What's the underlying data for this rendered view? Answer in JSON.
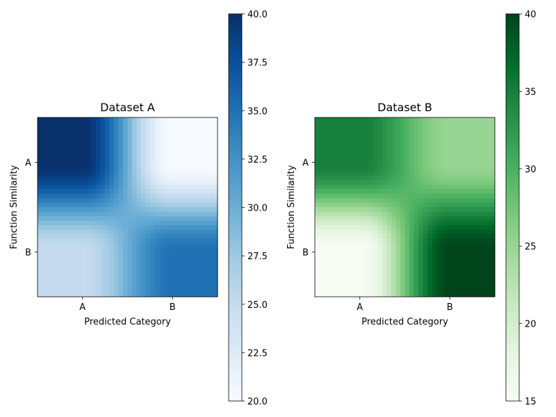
{
  "chart_data": [
    {
      "type": "heatmap",
      "title": "Dataset A",
      "xlabel": "Predicted Category",
      "ylabel": "Function Similarity",
      "x_categories": [
        "A",
        "B"
      ],
      "y_categories": [
        "A",
        "B"
      ],
      "values": [
        [
          40,
          20
        ],
        [
          25,
          35
        ]
      ],
      "colormap": "Blues",
      "interpolation": "bicubic",
      "colorbar": {
        "range": [
          20,
          40
        ],
        "ticks": [
          "20.0",
          "22.5",
          "25.0",
          "27.5",
          "30.0",
          "32.5",
          "35.0",
          "37.5",
          "40.0"
        ]
      }
    },
    {
      "type": "heatmap",
      "title": "Dataset B",
      "xlabel": "Predicted Category",
      "ylabel": "Function Similarity",
      "x_categories": [
        "A",
        "B"
      ],
      "y_categories": [
        "A",
        "B"
      ],
      "values": [
        [
          35,
          25
        ],
        [
          15,
          40
        ]
      ],
      "colormap": "Greens",
      "interpolation": "bicubic",
      "colorbar": {
        "range": [
          15,
          40
        ],
        "ticks": [
          "15",
          "20",
          "25",
          "30",
          "35",
          "40"
        ]
      }
    }
  ]
}
